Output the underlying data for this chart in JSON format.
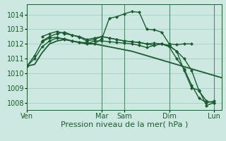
{
  "bg_color": "#cce8e0",
  "grid_color": "#99ccbb",
  "line_color": "#1a5c30",
  "marker_color": "#1a5c30",
  "xlabel": "Pression niveau de la mer( hPa )",
  "xlabel_fontsize": 8,
  "tick_fontsize": 7,
  "ylim": [
    1007.5,
    1014.7
  ],
  "yticks": [
    1008,
    1009,
    1010,
    1011,
    1012,
    1013,
    1014
  ],
  "xtick_labels": [
    "Ven",
    "Mar",
    "Sam",
    "Dim",
    "Lun"
  ],
  "xtick_positions": [
    0,
    10,
    13,
    19,
    25
  ],
  "vline_positions": [
    0,
    10,
    13,
    19,
    25
  ],
  "xlim": [
    0,
    26
  ],
  "series": [
    {
      "x": [
        0,
        1,
        2,
        3,
        4,
        5,
        6,
        7,
        8,
        9,
        10,
        11,
        12,
        13,
        14,
        15,
        16,
        17,
        18,
        19,
        20,
        21,
        22,
        23,
        24,
        25,
        26
      ],
      "y": [
        1010.5,
        1010.6,
        1011.4,
        1012.0,
        1012.2,
        1012.3,
        1012.2,
        1012.1,
        1012.0,
        1012.0,
        1011.9,
        1011.8,
        1011.7,
        1011.6,
        1011.5,
        1011.35,
        1011.2,
        1011.05,
        1010.9,
        1010.75,
        1010.6,
        1010.45,
        1010.3,
        1010.15,
        1010.0,
        1009.85,
        1009.7
      ],
      "with_markers": false,
      "lw": 1.3
    },
    {
      "x": [
        0,
        1,
        2,
        3,
        4,
        5,
        6,
        7,
        8,
        9,
        10,
        11,
        12,
        13,
        14,
        15,
        16,
        17,
        18,
        19,
        20,
        21,
        22
      ],
      "y": [
        1010.5,
        1011.2,
        1012.15,
        1012.4,
        1012.45,
        1012.3,
        1012.2,
        1012.1,
        1012.1,
        1012.0,
        1012.35,
        1013.75,
        1013.85,
        1014.05,
        1014.2,
        1014.15,
        1013.0,
        1012.95,
        1012.8,
        1012.0,
        1011.95,
        1012.0,
        1012.0
      ],
      "with_markers": true,
      "lw": 1.0
    },
    {
      "x": [
        2,
        3,
        4,
        5,
        6,
        7,
        8,
        9,
        10,
        11,
        12,
        13,
        14,
        15,
        16,
        17,
        18,
        19,
        20,
        21,
        22,
        23,
        24,
        25
      ],
      "y": [
        1012.2,
        1012.5,
        1012.7,
        1012.8,
        1012.6,
        1012.5,
        1012.3,
        1012.4,
        1012.5,
        1012.4,
        1012.3,
        1012.2,
        1012.15,
        1012.1,
        1012.0,
        1012.05,
        1012.0,
        1011.9,
        1011.5,
        1010.2,
        1009.0,
        1008.85,
        1007.8,
        1008.0
      ],
      "with_markers": true,
      "lw": 1.0
    },
    {
      "x": [
        2,
        3,
        4,
        5,
        6,
        7,
        8,
        9,
        10,
        11,
        12,
        13,
        14,
        15,
        16,
        17,
        18,
        19,
        20,
        21,
        22,
        23,
        24,
        25
      ],
      "y": [
        1012.5,
        1012.7,
        1012.85,
        1012.7,
        1012.6,
        1012.45,
        1012.2,
        1012.3,
        1012.5,
        1012.4,
        1012.3,
        1012.2,
        1012.15,
        1012.1,
        1012.0,
        1011.9,
        1012.0,
        1011.8,
        1011.0,
        1010.3,
        1009.2,
        1008.3,
        1008.0,
        1008.1
      ],
      "with_markers": true,
      "lw": 1.0
    },
    {
      "x": [
        0,
        1,
        2,
        3,
        4,
        5,
        6,
        7,
        8,
        9,
        10,
        11,
        12,
        13,
        14,
        15,
        16,
        17,
        18,
        19,
        20,
        21,
        22,
        23,
        24,
        25
      ],
      "y": [
        1010.5,
        1011.0,
        1011.8,
        1012.2,
        1012.4,
        1012.35,
        1012.2,
        1012.1,
        1012.0,
        1012.2,
        1012.2,
        1012.15,
        1012.1,
        1012.05,
        1012.0,
        1011.9,
        1011.75,
        1011.9,
        1012.0,
        1011.85,
        1011.5,
        1011.0,
        1010.2,
        1008.8,
        1008.1,
        1008.0
      ],
      "with_markers": true,
      "lw": 1.0
    }
  ]
}
